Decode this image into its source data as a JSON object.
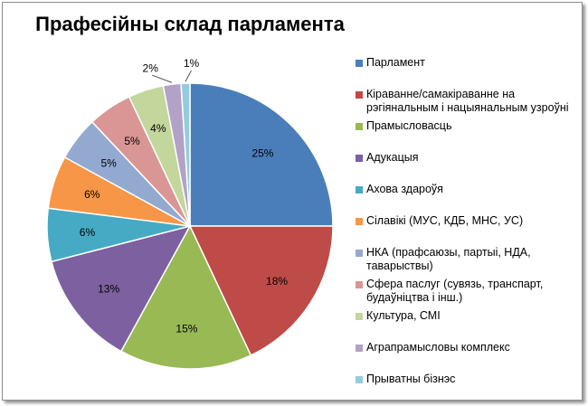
{
  "chart_data": {
    "type": "pie",
    "title": "Прафесійны склад парламента",
    "legend_position": "right",
    "start": "top, clockwise",
    "slices": [
      {
        "label": "Парламент",
        "value": 25,
        "data_label": "25%",
        "color": "#4A7EBB"
      },
      {
        "label": "Кіраванне/самакіраванне на рэгіянальным і нацыянальным узроўні",
        "value": 18,
        "data_label": "18%",
        "color": "#BE4B48"
      },
      {
        "label": "Прамысловасць",
        "value": 15,
        "data_label": "15%",
        "color": "#98B954"
      },
      {
        "label": "Адукацыя",
        "value": 13,
        "data_label": "13%",
        "color": "#7D60A0"
      },
      {
        "label": "Ахова здароўя",
        "value": 6,
        "data_label": "6%",
        "color": "#46AAC5"
      },
      {
        "label": "Сілавікі (МУС, КДБ, МНС, УС)",
        "value": 6,
        "data_label": "6%",
        "color": "#F79646"
      },
      {
        "label": "НКА (прафсаюзы, партыі, НДА, таварыствы)",
        "value": 5,
        "data_label": "5%",
        "color": "#94A9D0"
      },
      {
        "label": "Сфера паслуг (сувязь, транспарт, будаўніцтва і інш.)",
        "value": 5,
        "data_label": "5%",
        "color": "#D99694"
      },
      {
        "label": "Культура, СМІ",
        "value": 4,
        "data_label": "4%",
        "color": "#C3D69B"
      },
      {
        "label": "Аграпрамысловы комплекс",
        "value": 2,
        "data_label": "2%",
        "color": "#B2A2C7"
      },
      {
        "label": "Прыватны бізнэс",
        "value": 1,
        "data_label": "1%",
        "color": "#93CDDD"
      }
    ]
  }
}
